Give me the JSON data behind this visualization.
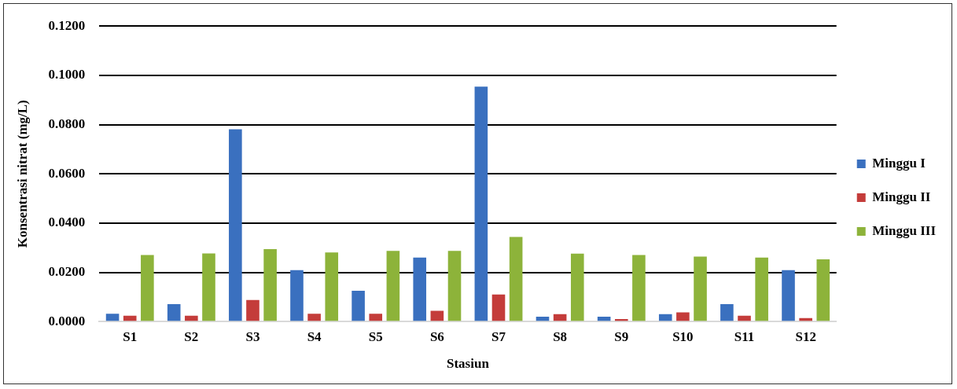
{
  "chart_data": {
    "type": "bar",
    "xlabel": "Stasiun",
    "ylabel": "Konsentrasi nitrat (mg/L)",
    "categories": [
      "S1",
      "S2",
      "S3",
      "S4",
      "S5",
      "S6",
      "S7",
      "S8",
      "S9",
      "S10",
      "S11",
      "S12"
    ],
    "series": [
      {
        "name": "Minggu I",
        "color": "#3a70bf",
        "values": [
          0.0032,
          0.0071,
          0.0781,
          0.0209,
          0.0125,
          0.026,
          0.0954,
          0.002,
          0.002,
          0.003,
          0.0071,
          0.0209
        ]
      },
      {
        "name": "Minggu II",
        "color": "#c43c3a",
        "values": [
          0.0024,
          0.0024,
          0.0088,
          0.0032,
          0.0032,
          0.0044,
          0.011,
          0.003,
          0.001,
          0.0037,
          0.0024,
          0.0014
        ]
      },
      {
        "name": "Minggu III",
        "color": "#8db33a",
        "values": [
          0.027,
          0.0277,
          0.0294,
          0.0281,
          0.0287,
          0.0287,
          0.0344,
          0.0276,
          0.027,
          0.0264,
          0.026,
          0.0253
        ]
      }
    ],
    "ylim": [
      0,
      0.12
    ],
    "yticks": [
      {
        "value": 0,
        "label": "0.0000"
      },
      {
        "value": 0.02,
        "label": "0.0200"
      },
      {
        "value": 0.04,
        "label": "0.0400"
      },
      {
        "value": 0.06,
        "label": "0.0600"
      },
      {
        "value": 0.08,
        "label": "0.0800"
      },
      {
        "value": 0.1,
        "label": "0.1000"
      },
      {
        "value": 0.12,
        "label": "0.1200"
      }
    ],
    "grid": "y",
    "legend": "right"
  }
}
